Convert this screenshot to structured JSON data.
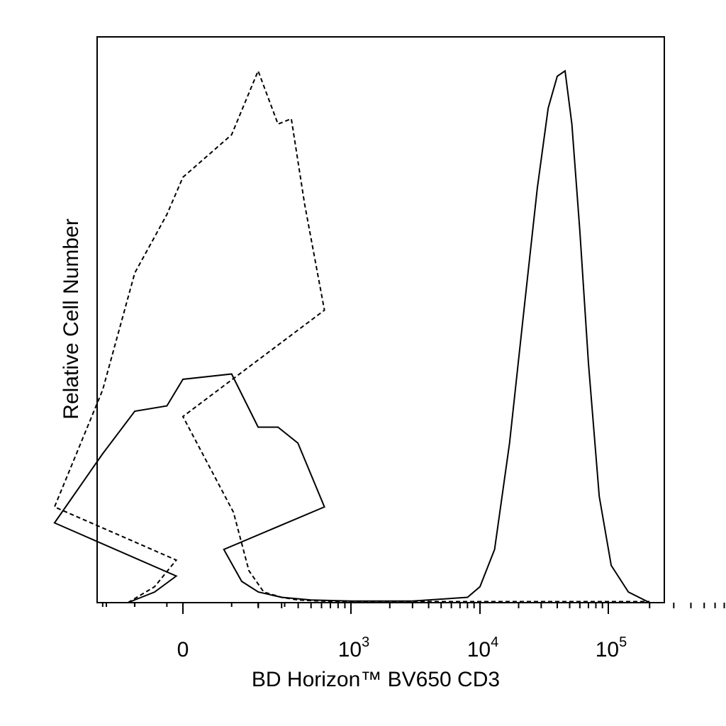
{
  "chart_data": {
    "type": "line",
    "title": "",
    "xlabel": "BD Horizon™ BV650 CD3",
    "ylabel": "Relative Cell Number",
    "x_scale": "biexponential",
    "xlim": [
      -300,
      250000
    ],
    "ylim": [
      0,
      1
    ],
    "grid": false,
    "legend": "none",
    "x_tick_labels": [
      {
        "value": 0,
        "base": "0",
        "exp": ""
      },
      {
        "value": 1000,
        "base": "10",
        "exp": "3"
      },
      {
        "value": 10000,
        "base": "10",
        "exp": "4"
      },
      {
        "value": 100000,
        "base": "10",
        "exp": "5"
      }
    ],
    "series": [
      {
        "style": "dashed",
        "x": [
          -220,
          -150,
          -110,
          -80,
          -50,
          -30,
          -10,
          0,
          10,
          30,
          45,
          55,
          65,
          80,
          100,
          130,
          170,
          220,
          300,
          400,
          600,
          1000,
          2000,
          5000,
          20000,
          100000,
          200000
        ],
        "y": [
          0.0,
          0.03,
          0.08,
          0.18,
          0.4,
          0.62,
          0.73,
          0.8,
          0.88,
          1.0,
          0.9,
          0.91,
          0.75,
          0.55,
          0.35,
          0.17,
          0.06,
          0.02,
          0.01,
          0.005,
          0.003,
          0.002,
          0.002,
          0.002,
          0.002,
          0.002,
          0.002
        ]
      },
      {
        "style": "solid",
        "x": [
          -220,
          -150,
          -110,
          -80,
          -50,
          -30,
          -10,
          0,
          10,
          30,
          45,
          60,
          80,
          110,
          150,
          200,
          300,
          500,
          1000,
          3000,
          8000,
          10000,
          13000,
          17000,
          22000,
          28000,
          34000,
          40000,
          46000,
          52000,
          60000,
          70000,
          85000,
          105000,
          140000,
          200000
        ],
        "y": [
          0.0,
          0.02,
          0.05,
          0.15,
          0.28,
          0.36,
          0.37,
          0.42,
          0.43,
          0.33,
          0.33,
          0.3,
          0.18,
          0.1,
          0.04,
          0.02,
          0.01,
          0.005,
          0.003,
          0.003,
          0.01,
          0.03,
          0.1,
          0.3,
          0.55,
          0.78,
          0.93,
          0.99,
          1.0,
          0.9,
          0.7,
          0.45,
          0.2,
          0.07,
          0.02,
          0.0
        ]
      }
    ]
  }
}
